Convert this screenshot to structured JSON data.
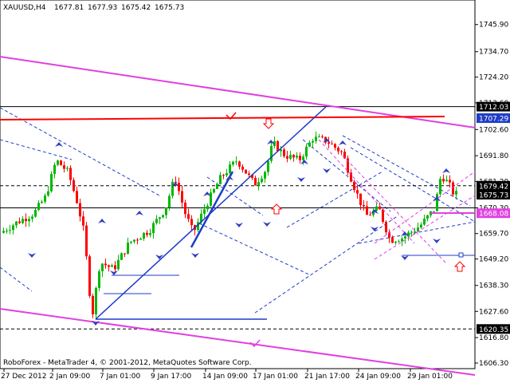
{
  "chart_data": {
    "type": "candlestick",
    "symbol_header": "XAUUSD,H4",
    "header_ohlc": [
      "1677.81",
      "1677.93",
      "1675.42",
      "1675.73"
    ],
    "copyright": "RoboForex - MetaTrader 4, © 2001-2012, MetaQuotes Software Corp.",
    "ylim": [
      1604,
      1756
    ],
    "y_ticks": [
      "1745.90",
      "1734.70",
      "1724.20",
      "1713.60",
      "1702.60",
      "1691.80",
      "1681.20",
      "1670.30",
      "1659.70",
      "1649.20",
      "1638.30",
      "1627.60",
      "1616.80",
      "1606.30"
    ],
    "x_ticks": [
      "27 Dec 2012",
      "2 Jan 09:00",
      "7 Jan 01:00",
      "9 Jan 17:00",
      "14 Jan 09:00",
      "17 Jan 01:00",
      "21 Jan 17:00",
      "24 Jan 09:00",
      "29 Jan 01:00"
    ],
    "price_labels": [
      {
        "text": "1712.03",
        "value": 1712.03,
        "bg": "#000000",
        "fg": "#ffffff"
      },
      {
        "text": "1707.29",
        "value": 1707.29,
        "bg": "#1e3cc8",
        "fg": "#ffffff"
      },
      {
        "text": "1679.42",
        "value": 1679.42,
        "bg": "#000000",
        "fg": "#ffffff"
      },
      {
        "text": "1675.73",
        "value": 1675.73,
        "bg": "#000000",
        "fg": "#ffffff"
      },
      {
        "text": "1668.08",
        "value": 1668.08,
        "bg": "#e040e0",
        "fg": "#ffffff"
      },
      {
        "text": "1620.35",
        "value": 1620.35,
        "bg": "#000000",
        "fg": "#ffffff"
      }
    ],
    "levels": [
      {
        "value": 1712.03,
        "style": "solid",
        "color": "#000000"
      },
      {
        "value": 1679.42,
        "style": "dashed",
        "color": "#000000"
      },
      {
        "value": 1670.3,
        "style": "solid",
        "color": "#000000"
      },
      {
        "value": 1620.35,
        "style": "dashed",
        "color": "#000000"
      }
    ],
    "colors": {
      "bull": "#00b800",
      "bear": "#ff0000",
      "channel": "#e040e0",
      "trend": "#1e3cc8",
      "resistance": "#ff0000",
      "fractal": "#3040c0"
    }
  }
}
